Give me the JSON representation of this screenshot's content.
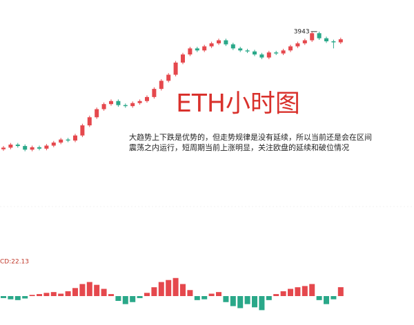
{
  "chart_data": {
    "type": "candlestick",
    "title": "ETH小时图",
    "annotation": [
      "大趋势上下跌是优势的，但走势规律是没有延续，所以当前还是会在区间",
      "震荡之内运行，短周期当前上涨明显，关注欧盘的延续和破位情况"
    ],
    "open": [
      3362,
      3370,
      3385,
      3378,
      3360,
      3372,
      3365,
      3380,
      3395,
      3410,
      3405,
      3430,
      3480,
      3520,
      3560,
      3585,
      3600,
      3580,
      3575,
      3590,
      3600,
      3620,
      3660,
      3700,
      3730,
      3790,
      3830,
      3860,
      3850,
      3870,
      3885,
      3900,
      3880,
      3860,
      3850,
      3845,
      3830,
      3815,
      3840,
      3835,
      3850,
      3870,
      3885,
      3900,
      3935,
      3910,
      3895,
      3890
    ],
    "high": [
      3378,
      3393,
      3393,
      3386,
      3380,
      3380,
      3388,
      3403,
      3418,
      3418,
      3438,
      3488,
      3528,
      3568,
      3593,
      3608,
      3608,
      3588,
      3598,
      3608,
      3628,
      3668,
      3708,
      3738,
      3798,
      3838,
      3868,
      3868,
      3878,
      3893,
      3908,
      3908,
      3888,
      3868,
      3858,
      3853,
      3838,
      3848,
      3848,
      3858,
      3878,
      3893,
      3908,
      3942.49,
      3943,
      3918,
      3903,
      3913
    ],
    "low": [
      3354,
      3362,
      3370,
      3352,
      3352,
      3357,
      3357,
      3372,
      3387,
      3397,
      3397,
      3422,
      3472,
      3512,
      3552,
      3577,
      3572,
      3567,
      3567,
      3582,
      3592,
      3612,
      3652,
      3692,
      3722,
      3782,
      3822,
      3842,
      3842,
      3862,
      3877,
      3872,
      3852,
      3842,
      3837,
      3822,
      3807,
      3807,
      3827,
      3827,
      3842,
      3862,
      3877,
      3892,
      3902,
      3887,
      3860,
      3882
    ],
    "close": [
      3370,
      3385,
      3378,
      3360,
      3372,
      3365,
      3380,
      3395,
      3410,
      3405,
      3430,
      3480,
      3520,
      3560,
      3585,
      3600,
      3580,
      3575,
      3590,
      3600,
      3620,
      3660,
      3700,
      3730,
      3790,
      3830,
      3860,
      3850,
      3870,
      3885,
      3900,
      3880,
      3860,
      3850,
      3845,
      3830,
      3815,
      3840,
      3835,
      3850,
      3870,
      3885,
      3900,
      3935,
      3910,
      3895,
      3890,
      3905
    ],
    "ylim": [
      3300,
      3980
    ],
    "up_color": "#e5484d",
    "down_color": "#2aa889",
    "macd_label": "CD:22.13",
    "macd_hist": [
      -5,
      -8,
      -10,
      -6,
      3,
      5,
      8,
      10,
      6,
      12,
      20,
      30,
      35,
      28,
      18,
      5,
      -12,
      -20,
      -15,
      -5,
      8,
      22,
      35,
      40,
      45,
      30,
      15,
      -10,
      -8,
      6,
      10,
      -15,
      -25,
      -30,
      -20,
      -28,
      -35,
      -10,
      5,
      12,
      18,
      22,
      25,
      30,
      -10,
      -20,
      -8,
      22.13
    ],
    "macd_ylim": [
      -60,
      60
    ]
  }
}
